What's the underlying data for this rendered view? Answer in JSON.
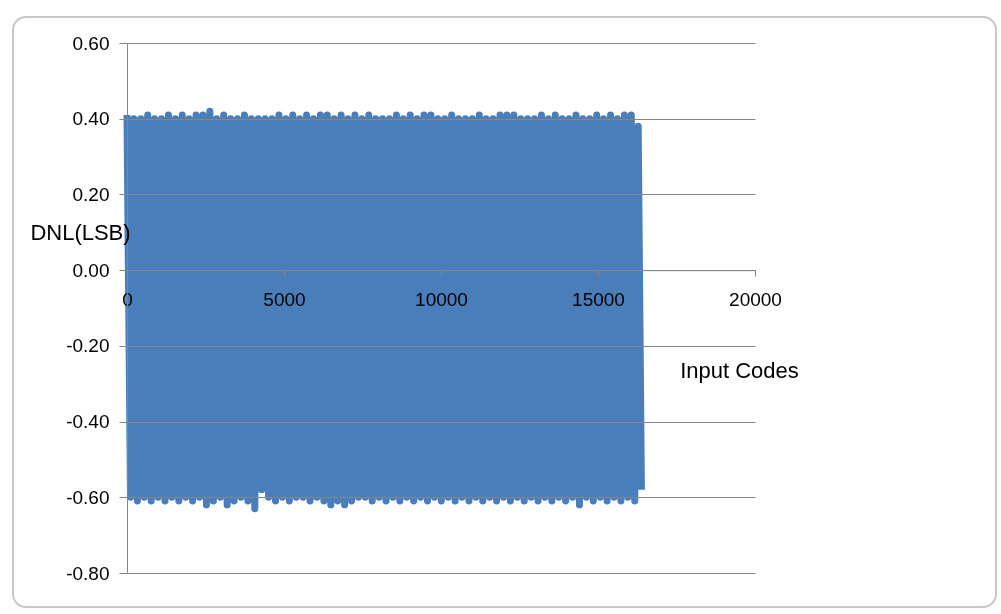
{
  "chart_data": {
    "type": "line",
    "xlabel": "Input Codes",
    "ylabel": "DNL(LSB)",
    "xlim": [
      0,
      20000
    ],
    "xticks": [
      0,
      5000,
      10000,
      15000,
      20000
    ],
    "ylim": [
      -0.8,
      0.6
    ],
    "yticks": [
      {
        "value": -0.8,
        "label": "-0.80"
      },
      {
        "value": -0.6,
        "label": "-0.60"
      },
      {
        "value": -0.4,
        "label": "-0.40"
      },
      {
        "value": -0.2,
        "label": "-0.20"
      },
      {
        "value": 0,
        "label": "0.00"
      },
      {
        "value": 0.2,
        "label": "0.20"
      },
      {
        "value": 0.4,
        "label": "0.40"
      },
      {
        "value": 0.6,
        "label": "0.60"
      }
    ],
    "grid": "y",
    "line_style": "solid",
    "marker": "none",
    "x": [
      0,
      110,
      220,
      330,
      440,
      550,
      660,
      770,
      880,
      990,
      1100,
      1210,
      1320,
      1430,
      1540,
      1650,
      1760,
      1870,
      1980,
      2090,
      2200,
      2310,
      2420,
      2530,
      2640,
      2750,
      2860,
      2970,
      3080,
      3190,
      3300,
      3410,
      3520,
      3630,
      3740,
      3850,
      3960,
      4070,
      4180,
      4290,
      4400,
      4510,
      4620,
      4730,
      4840,
      4950,
      5060,
      5170,
      5280,
      5390,
      5500,
      5610,
      5720,
      5830,
      5940,
      6050,
      6160,
      6270,
      6380,
      6490,
      6600,
      6710,
      6820,
      6930,
      7040,
      7150,
      7260,
      7370,
      7480,
      7590,
      7700,
      7810,
      7920,
      8030,
      8140,
      8250,
      8360,
      8470,
      8580,
      8690,
      8800,
      8910,
      9020,
      9130,
      9240,
      9350,
      9460,
      9570,
      9680,
      9790,
      9900,
      10010,
      10120,
      10230,
      10340,
      10450,
      10560,
      10670,
      10780,
      10890,
      11000,
      11110,
      11220,
      11330,
      11440,
      11550,
      11660,
      11770,
      11880,
      11990,
      12100,
      12210,
      12320,
      12430,
      12540,
      12650,
      12760,
      12870,
      12980,
      13090,
      13200,
      13310,
      13420,
      13530,
      13640,
      13750,
      13860,
      13970,
      14080,
      14190,
      14300,
      14410,
      14520,
      14630,
      14740,
      14850,
      14960,
      15070,
      15180,
      15290,
      15400,
      15510,
      15620,
      15730,
      15840,
      15950,
      16060,
      16170,
      16280,
      16383
    ],
    "series": [
      {
        "color": "#4a7ebb",
        "values": [
          0.41,
          -0.6,
          0.4,
          -0.61,
          0.4,
          -0.6,
          0.41,
          -0.61,
          0.4,
          -0.6,
          0.4,
          -0.61,
          0.41,
          -0.6,
          0.4,
          -0.61,
          0.41,
          -0.6,
          0.4,
          -0.61,
          0.41,
          -0.6,
          0.41,
          -0.62,
          0.42,
          -0.61,
          0.4,
          -0.6,
          0.41,
          -0.62,
          0.4,
          -0.61,
          0.4,
          -0.6,
          0.41,
          -0.61,
          0.4,
          -0.63,
          0.4,
          -0.58,
          0.4,
          -0.6,
          0.4,
          -0.61,
          0.41,
          -0.6,
          0.4,
          -0.61,
          0.41,
          -0.6,
          0.4,
          -0.6,
          0.41,
          -0.61,
          0.4,
          -0.6,
          0.41,
          -0.61,
          0.41,
          -0.62,
          0.4,
          -0.61,
          0.41,
          -0.62,
          0.4,
          -0.61,
          0.41,
          -0.6,
          0.4,
          -0.6,
          0.41,
          -0.61,
          0.4,
          -0.6,
          0.4,
          -0.61,
          0.4,
          -0.6,
          0.41,
          -0.61,
          0.4,
          -0.6,
          0.41,
          -0.61,
          0.4,
          -0.6,
          0.41,
          -0.61,
          0.41,
          -0.6,
          0.4,
          -0.61,
          0.4,
          -0.6,
          0.41,
          -0.61,
          0.4,
          -0.6,
          0.4,
          -0.61,
          0.4,
          -0.6,
          0.41,
          -0.61,
          0.4,
          -0.6,
          0.4,
          -0.61,
          0.41,
          -0.6,
          0.41,
          -0.61,
          0.41,
          -0.6,
          0.4,
          -0.61,
          0.4,
          -0.6,
          0.4,
          -0.61,
          0.41,
          -0.6,
          0.4,
          -0.61,
          0.41,
          -0.6,
          0.4,
          -0.61,
          0.4,
          -0.6,
          0.41,
          -0.62,
          0.4,
          -0.6,
          0.4,
          -0.61,
          0.41,
          -0.6,
          0.4,
          -0.61,
          0.41,
          -0.6,
          0.4,
          -0.61,
          0.41,
          -0.6,
          0.41,
          -0.61,
          0.38,
          -0.58
        ]
      }
    ]
  }
}
